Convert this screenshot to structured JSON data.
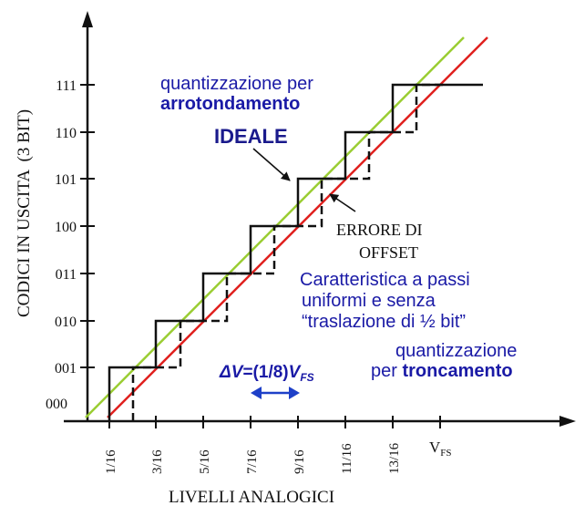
{
  "y_axis_title": "CODICI IN USCITA  (3 BIT)",
  "x_axis_title": "LIVELLI ANALOGICI",
  "y_codes": [
    "000",
    "001",
    "010",
    "011",
    "100",
    "101",
    "110",
    "111"
  ],
  "x_ticks": [
    "1/16",
    "3/16",
    "5/16",
    "7/16",
    "9/16",
    "11/16",
    "13/16"
  ],
  "x_ticks_vfs": {
    "main": "V",
    "sub": "FS"
  },
  "labels": {
    "rounding_line1": "quantizzazione per",
    "rounding_line2": "arrotondamento",
    "ideale": "IDEALE",
    "offset_line1": "ERRORE DI",
    "offset_line2": "OFFSET",
    "char_line1": "Caratteristica a passi",
    "char_line2": "uniformi e senza",
    "char_line3": "“traslazione di ½ bit”",
    "trunc_line1": "quantizzazione",
    "trunc_line2_a": "per ",
    "trunc_line2_b": "troncamento",
    "delta_v": {
      "delta": "Δ",
      "v": "V",
      "mid": "=(1/8)",
      "v2": "V",
      "sub": "FS"
    }
  },
  "colors": {
    "ideal_line": "#9acd32",
    "offset_line": "#e0201e",
    "text_blue": "#1a1aa6",
    "arrow_blue": "#1e40c8"
  }
}
